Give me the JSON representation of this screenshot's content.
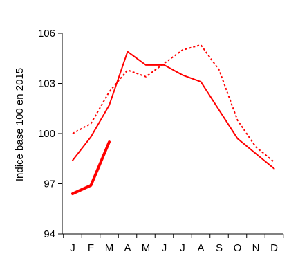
{
  "chart_data": {
    "type": "line",
    "title": "",
    "xlabel": "",
    "ylabel": "Indice base 100 en 2015",
    "categories": [
      "J",
      "F",
      "M",
      "A",
      "M",
      "J",
      "J",
      "A",
      "S",
      "O",
      "N",
      "D"
    ],
    "ylim": [
      94,
      106
    ],
    "yticks": [
      94,
      97,
      100,
      103,
      106
    ],
    "grid": false,
    "legend": "none",
    "series": [
      {
        "style": "dotted",
        "color": "#ff0000",
        "values": [
          100.0,
          100.6,
          102.5,
          103.8,
          103.4,
          104.2,
          105.0,
          105.3,
          103.8,
          100.8,
          99.2,
          98.3
        ]
      },
      {
        "style": "solid",
        "color": "#ff0000",
        "values": [
          98.4,
          99.8,
          101.7,
          104.9,
          104.1,
          104.1,
          103.5,
          103.1,
          101.4,
          99.7,
          98.8,
          97.9
        ]
      },
      {
        "style": "thick",
        "color": "#ff0000",
        "values": [
          96.4,
          96.9,
          99.5,
          null,
          null,
          null,
          null,
          null,
          null,
          null,
          null,
          null
        ]
      }
    ]
  }
}
